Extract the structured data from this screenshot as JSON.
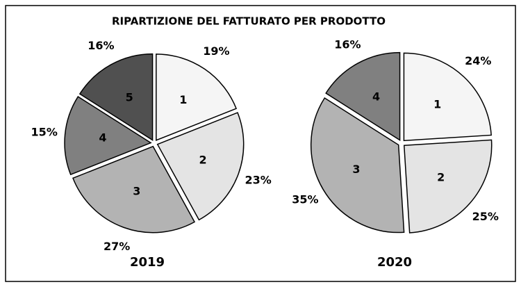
{
  "title": "RIPARTIZIONE DEL FATTURATO PER PRODOTTO",
  "chart_data": [
    {
      "type": "pie",
      "title": "2019",
      "categories": [
        "1",
        "2",
        "3",
        "4",
        "5"
      ],
      "values": [
        19,
        23,
        27,
        15,
        16
      ],
      "value_labels": [
        "19%",
        "23%",
        "27%",
        "15%",
        "16%"
      ],
      "colors": [
        "#f5f5f5",
        "#e4e4e4",
        "#b3b3b3",
        "#808080",
        "#505050"
      ]
    },
    {
      "type": "pie",
      "title": "2020",
      "categories": [
        "1",
        "2",
        "3",
        "4"
      ],
      "values": [
        24,
        25,
        35,
        16
      ],
      "value_labels": [
        "24%",
        "25%",
        "35%",
        "16%"
      ],
      "colors": [
        "#f5f5f5",
        "#e4e4e4",
        "#b3b3b3",
        "#808080"
      ]
    }
  ]
}
